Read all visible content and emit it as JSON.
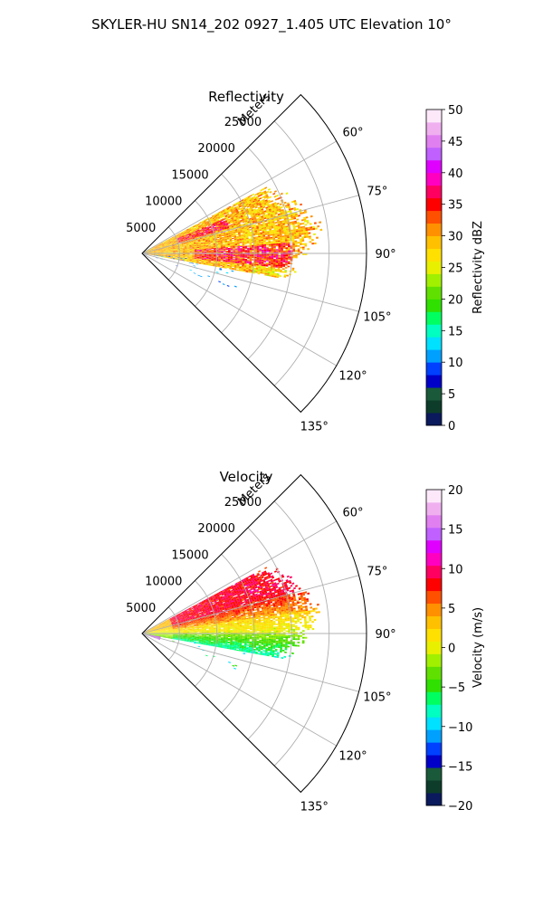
{
  "figure": {
    "suptitle": "SKYLER-HU  SN14_202  0927_1.405 UTC Elevation 10°"
  },
  "chart_data": [
    {
      "type": "heatmap",
      "projection": "polar-sector",
      "title": "Reflectivity",
      "range_label": "Meters",
      "range_ticks": [
        5000,
        10000,
        15000,
        20000,
        25000
      ],
      "range_max": 30000,
      "azimuth_ticks": [
        "60°",
        "75°",
        "90°",
        "105°",
        "120°",
        "135°"
      ],
      "azimuth_tick_values": [
        60,
        75,
        90,
        105,
        120,
        135
      ],
      "azimuth_range": [
        45,
        135
      ],
      "grid": true,
      "colorbar": {
        "label": "Reflectivity dBZ",
        "ticks": [
          "0",
          "5",
          "10",
          "15",
          "20",
          "25",
          "30",
          "35",
          "40",
          "45",
          "50"
        ],
        "range": [
          0,
          50
        ],
        "colors": [
          "#0a1a5c",
          "#0d3d2a",
          "#1a5a3a",
          "#0000c8",
          "#0040ff",
          "#00a0ff",
          "#00e0ff",
          "#00ffc0",
          "#00ff60",
          "#30e000",
          "#60e000",
          "#a0f000",
          "#e8f000",
          "#ffe000",
          "#ffc000",
          "#ff9000",
          "#ff5000",
          "#ff0000",
          "#ff0060",
          "#ff00c0",
          "#e000ff",
          "#c060ff",
          "#e080f0",
          "#f0b0f0",
          "#fde8fa"
        ]
      },
      "echo_summary": "Echo mostly 15–30 dBZ between azimuth ~65° and ~100°, out to ~23000 m; a few isolated weak echoes (0–10 dBZ) south of 100°."
    },
    {
      "type": "heatmap",
      "projection": "polar-sector",
      "title": "Velocity",
      "range_label": "Meters",
      "range_ticks": [
        5000,
        10000,
        15000,
        20000,
        25000
      ],
      "range_max": 30000,
      "azimuth_ticks": [
        "60°",
        "75°",
        "90°",
        "105°",
        "120°",
        "135°"
      ],
      "azimuth_tick_values": [
        60,
        75,
        90,
        105,
        120,
        135
      ],
      "azimuth_range": [
        45,
        135
      ],
      "grid": true,
      "colorbar": {
        "label": "Velocity (m/s)",
        "ticks": [
          "−20",
          "−15",
          "−10",
          "−5",
          "0",
          "5",
          "10",
          "15",
          "20"
        ],
        "range": [
          -20,
          20
        ],
        "colors": [
          "#0a1a5c",
          "#0d3d2a",
          "#1a5a3a",
          "#0000c8",
          "#0040ff",
          "#00a0ff",
          "#00e0ff",
          "#00ffc0",
          "#00ff60",
          "#30e000",
          "#60e000",
          "#a0f000",
          "#e8f000",
          "#ffe000",
          "#ffc000",
          "#ff9000",
          "#ff5000",
          "#ff0000",
          "#ff0060",
          "#ff00c0",
          "#e000ff",
          "#c060ff",
          "#e080f0",
          "#f0b0f0",
          "#fde8fa"
        ]
      },
      "echo_summary": "Positive (outbound) 5–12 m/s in the northern part (az ~65°–85°), near 0 m/s around 90°, negative −5 to −10 m/s at az ~95°–105°; purple (≈15–20 m/s) near the radar at az ~105°."
    }
  ]
}
